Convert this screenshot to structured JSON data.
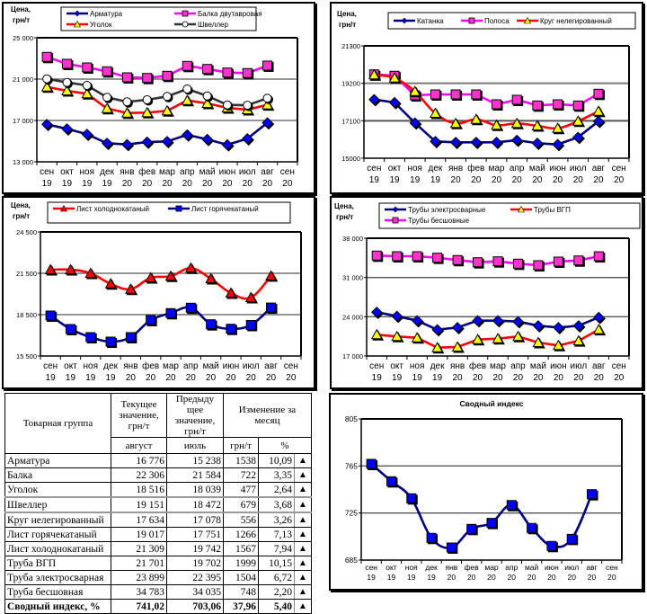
{
  "months": [
    "сен",
    "окт",
    "ноя",
    "дек",
    "янв",
    "фев",
    "мар",
    "апр",
    "май",
    "июн",
    "июл",
    "авг",
    "сен"
  ],
  "years": [
    "19",
    "19",
    "19",
    "19",
    "20",
    "20",
    "20",
    "20",
    "20",
    "20",
    "20",
    "20",
    "20"
  ],
  "y_unit_label": [
    "Цена,",
    "грн/т"
  ],
  "chart_data": [
    {
      "type": "line",
      "id": "long-products",
      "title": "",
      "ylabel": "Цена, грн/т",
      "ylim": [
        13000,
        25000
      ],
      "yticks": [
        13000,
        17000,
        21000,
        25000
      ],
      "ytick_labels": [
        "13 000",
        "17 000",
        "21 000",
        "25 000"
      ],
      "legend": "top",
      "series": [
        {
          "name": "Арматура",
          "color": "#000080",
          "marker": "diamond",
          "marker_color": "#0000ff",
          "values": [
            16626,
            16191,
            15670,
            14800,
            14678,
            14913,
            14974,
            15609,
            15174,
            14652,
            15238,
            16776
          ]
        },
        {
          "name": "Балка двутавровая",
          "color": "#ff00ff",
          "marker": "square",
          "marker_color": "#ff33cc",
          "values": [
            23148,
            22478,
            22130,
            21756,
            21174,
            21113,
            21322,
            22278,
            21983,
            21635,
            21584,
            22306
          ]
        },
        {
          "name": "Уголок",
          "color": "#ff0000",
          "marker": "triangle",
          "marker_color": "#ffff00",
          "values": [
            20243,
            19870,
            19583,
            18157,
            17722,
            17757,
            17930,
            18939,
            18652,
            18217,
            18039,
            18516
          ]
        },
        {
          "name": "Швеллер",
          "color": "#333333",
          "marker": "circle",
          "marker_color": "#ffffff",
          "values": [
            21026,
            20678,
            20391,
            19235,
            18800,
            19000,
            19322,
            20043,
            19374,
            18504,
            18472,
            19151
          ]
        }
      ]
    },
    {
      "type": "line",
      "id": "wire-strip-round",
      "title": "",
      "ylabel": "Цена, грн/т",
      "ylim": [
        15000,
        21300
      ],
      "yticks": [
        15000,
        17100,
        19200,
        21300
      ],
      "ytick_labels": [
        "15000",
        "17100",
        "19200",
        "21300"
      ],
      "legend": "top",
      "series": [
        {
          "name": "Катанка",
          "color": "#000080",
          "marker": "diamond",
          "marker_color": "#0000ff",
          "values": [
            18291,
            18125,
            16981,
            15943,
            15893,
            15893,
            15893,
            16009,
            15843,
            15773,
            16176,
            17069
          ]
        },
        {
          "name": "Полоса",
          "color": "#ff00ff",
          "marker": "square",
          "marker_color": "#ff33cc",
          "values": [
            19702,
            19622,
            18528,
            18578,
            18578,
            18578,
            18024,
            18276,
            17958,
            18024,
            17958,
            18614
          ]
        },
        {
          "name": "Круг нелегированный",
          "color": "#ff0000",
          "marker": "triangle",
          "marker_color": "#ffff00",
          "values": [
            19672,
            19501,
            18745,
            17520,
            16950,
            17182,
            16850,
            16950,
            16814,
            16678,
            17078,
            17634
          ]
        }
      ]
    },
    {
      "type": "line",
      "id": "sheets",
      "title": "",
      "ylabel": "Цена, грн/т",
      "ylim": [
        15500,
        24500
      ],
      "yticks": [
        15500,
        18500,
        21500,
        24500
      ],
      "ytick_labels": [
        "15 500",
        "18 500",
        "21 500",
        "24 500"
      ],
      "legend": "top",
      "series": [
        {
          "name": "Лист холоднокатаный",
          "color": "#ff0000",
          "marker": "triangle",
          "marker_color": "#ff0000",
          "values": [
            21761,
            21761,
            21500,
            20737,
            20346,
            21174,
            21285,
            21872,
            21109,
            20065,
            19742,
            21309
          ]
        },
        {
          "name": "Лист горячекатаный",
          "color": "#000080",
          "marker": "square",
          "marker_color": "#0000ff",
          "values": [
            18435,
            17457,
            16870,
            16543,
            16870,
            18109,
            18611,
            19002,
            17802,
            17476,
            17751,
            19017
          ]
        }
      ]
    },
    {
      "type": "line",
      "id": "pipes",
      "title": "",
      "ylabel": "Цена, грн/т",
      "ylim": [
        17000,
        38000
      ],
      "yticks": [
        17000,
        24000,
        31000,
        38000
      ],
      "ytick_labels": [
        "17 000",
        "24 000",
        "31 000",
        "38 000"
      ],
      "legend": "top",
      "series": [
        {
          "name": "Трубы электросварные",
          "color": "#000080",
          "marker": "diamond",
          "marker_color": "#0000ff",
          "values": [
            24807,
            24101,
            23300,
            21697,
            22082,
            23300,
            23300,
            23140,
            22403,
            22082,
            22395,
            23899
          ]
        },
        {
          "name": "Трубы ВГП",
          "color": "#ff0000",
          "marker": "triangle",
          "marker_color": "#ffff00",
          "values": [
            20799,
            20478,
            20254,
            18491,
            18603,
            19934,
            20094,
            20478,
            19405,
            18876,
            19702,
            21701
          ]
        },
        {
          "name": "Трубы бесшовные",
          "color": "#ff00ff",
          "marker": "square",
          "marker_color": "#ff33cc",
          "values": [
            34906,
            34794,
            34794,
            34525,
            34108,
            33720,
            33880,
            33463,
            33191,
            33832,
            34035,
            34783
          ]
        }
      ]
    },
    {
      "type": "line",
      "id": "summary-index",
      "title": "Сводный индекс",
      "ylabel": "",
      "ylim": [
        685,
        805
      ],
      "yticks": [
        685,
        725,
        765,
        805
      ],
      "ytick_labels": [
        "685",
        "725",
        "765",
        "805"
      ],
      "legend": "none",
      "series": [
        {
          "name": "Сводный индекс",
          "color": "#000080",
          "marker": "square",
          "marker_color": "#0000ff",
          "values": [
            766.8,
            752.0,
            737.5,
            703.9,
            695.7,
            711.5,
            716.6,
            731.8,
            712.3,
            697.0,
            703.06,
            741.02
          ]
        }
      ]
    }
  ],
  "table": {
    "headers": {
      "group": "Товарная группа",
      "current": "Текущее значение, грн/т",
      "previous": "Предыду щее значение, грн/т",
      "change": "Изменение за месяц",
      "current_month": "август",
      "previous_month": "июль",
      "change_abs": "грн/т",
      "change_pct": "%"
    },
    "rows": [
      {
        "name": "Арматура",
        "current": "16 776",
        "previous": "15 238",
        "abs": "1538",
        "pct": "10,09",
        "trend": "▲"
      },
      {
        "name": "Балка",
        "current": "22 306",
        "previous": "21 584",
        "abs": "722",
        "pct": "3,35",
        "trend": "▲"
      },
      {
        "name": "Уголок",
        "current": "18 516",
        "previous": "18 039",
        "abs": "477",
        "pct": "2,64",
        "trend": "▲"
      },
      {
        "name": "Швеллер",
        "current": "19 151",
        "previous": "18 472",
        "abs": "679",
        "pct": "3,68",
        "trend": "▲"
      },
      {
        "name": "Круг нелегированный",
        "current": "17 634",
        "previous": "17 078",
        "abs": "556",
        "pct": "3,26",
        "trend": "▲"
      },
      {
        "name": "Лист горячекатаный",
        "current": "19 017",
        "previous": "17 751",
        "abs": "1266",
        "pct": "7,13",
        "trend": "▲"
      },
      {
        "name": "Лист холоднокатаный",
        "current": "21 309",
        "previous": "19 742",
        "abs": "1567",
        "pct": "7,94",
        "trend": "▲"
      },
      {
        "name": "Труба ВГП",
        "current": "21 701",
        "previous": "19 702",
        "abs": "1999",
        "pct": "10,15",
        "trend": "▲"
      },
      {
        "name": "Труба электросварная",
        "current": "23 899",
        "previous": "22 395",
        "abs": "1504",
        "pct": "6,72",
        "trend": "▲"
      },
      {
        "name": "Труба бесшовная",
        "current": "34 783",
        "previous": "34 035",
        "abs": "748",
        "pct": "2,20",
        "trend": "▲"
      }
    ],
    "total": {
      "name": "Сводный индекс, %",
      "current": "741,02",
      "previous": "703,06",
      "abs": "37,96",
      "pct": "5,40",
      "trend": "▲"
    }
  }
}
